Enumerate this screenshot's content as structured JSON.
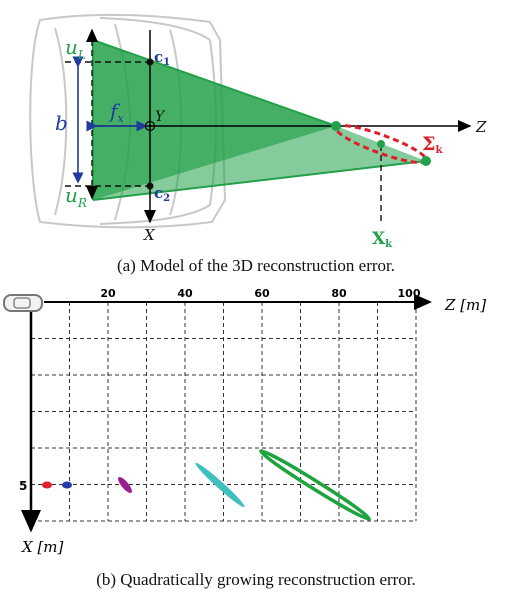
{
  "top": {
    "labels": {
      "u_l": "u",
      "u_l_sub": "L",
      "u_r": "u",
      "u_r_sub": "R",
      "c1": "c",
      "c1_sub": "1",
      "c2": "c",
      "c2_sub": "2",
      "b": "b",
      "fx": "f",
      "fx_sub": "x",
      "y": "Y",
      "z": "Z",
      "x": "X",
      "sigma": "Σ",
      "sigma_sub": "k",
      "xk": "X",
      "xk_sub": "k"
    },
    "colors": {
      "green": "#22a04a",
      "red": "#dd1f2b",
      "blue": "#1f3aa0"
    },
    "caption": "(a) Model of the 3D reconstruction error."
  },
  "bottom": {
    "x_ticks": [
      "20",
      "40",
      "60",
      "80",
      "100"
    ],
    "z_axis_label": "Z [m]",
    "x_axis_label": "X [m]",
    "x_tick_label": "5",
    "ellipse_colors": [
      "#e0202a",
      "#2a3aa8",
      "#9a1f8f",
      "#3fc0bd",
      "#1fa33e"
    ],
    "caption": "(b) Quadratically growing reconstruction error."
  }
}
